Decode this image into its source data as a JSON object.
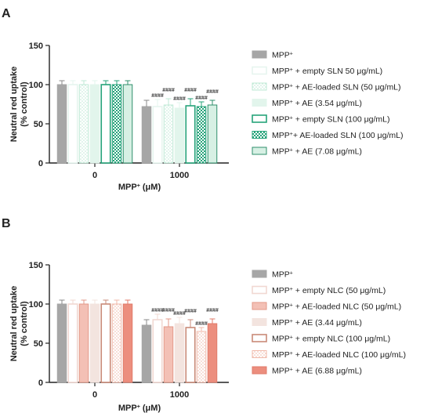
{
  "panels": [
    {
      "letter": "A",
      "ylabel_line1": "Neutral red uptake",
      "ylabel_line2": "(% control)",
      "xlabel_main": "MPP",
      "xlabel_sup": "+",
      "xlabel_units": " (μM)",
      "yticks": [
        "0",
        "50",
        "100",
        "150"
      ],
      "xticks": [
        "0",
        "1000"
      ],
      "legend": [
        {
          "pre": "MPP",
          "sup": "+",
          "post": ""
        },
        {
          "pre": "MPP",
          "sup": "+",
          "post": " + empty SLN 50 μg/mL)"
        },
        {
          "pre": "MPP",
          "sup": "+",
          "post": " + AE-loaded SLN (50 μg/mL)"
        },
        {
          "pre": "MPP",
          "sup": "+",
          "post": " + AE (3.54 μg/mL)"
        },
        {
          "pre": "MPP",
          "sup": "+",
          "post": " + empty SLN (100 μg/mL)"
        },
        {
          "pre": "MPP",
          "sup": "+",
          "post": "+ AE-loaded SLN (100 μg/mL)"
        },
        {
          "pre": "MPP",
          "sup": "+",
          "post": " + AE (7.08 μg/mL)"
        }
      ],
      "sig_labels": [
        "####",
        "####",
        "####",
        "####",
        "####",
        "####"
      ]
    },
    {
      "letter": "B",
      "ylabel_line1": "Neutral red uptake",
      "ylabel_line2": "(% control)",
      "xlabel_main": "MPP",
      "xlabel_sup": "+",
      "xlabel_units": " (μM)",
      "yticks": [
        "0",
        "50",
        "100",
        "150"
      ],
      "xticks": [
        "0",
        "1000"
      ],
      "legend": [
        {
          "pre": "MPP",
          "sup": "+",
          "post": ""
        },
        {
          "pre": "MPP",
          "sup": "+",
          "post": " + empty NLC (50 μg/mL)"
        },
        {
          "pre": "MPP",
          "sup": "+",
          "post": " + AE-loaded NLC (50 μg/mL)"
        },
        {
          "pre": "MPP",
          "sup": "+",
          "post": " + AE (3.44 μg/mL)"
        },
        {
          "pre": "MPP",
          "sup": "+",
          "post": " + empty NLC (100 μg/mL)"
        },
        {
          "pre": "MPP",
          "sup": "+",
          "post": " + AE-loaded NLC (100 μg/mL)"
        },
        {
          "pre": "MPP",
          "sup": "+",
          "post": " + AE (6.88 μg/mL)"
        }
      ],
      "sig_labels": [
        "####",
        "####",
        "####",
        "####",
        "####",
        "####"
      ]
    }
  ],
  "chart_data": [
    {
      "type": "bar",
      "title": "A",
      "categories": [
        "0",
        "1000"
      ],
      "xlabel": "MPP+ (μM)",
      "ylabel": "Neutral red uptake (% control)",
      "ylim": [
        0,
        150
      ],
      "yticks": [
        0,
        50,
        100,
        150
      ],
      "grid": false,
      "legend_position": "right",
      "series": [
        {
          "name": "MPP+",
          "values": [
            100,
            72
          ],
          "errors": [
            5,
            8
          ],
          "fill": "#a6a6a6",
          "stroke": "#a6a6a6",
          "pattern": "solid"
        },
        {
          "name": "MPP+ + empty SLN 50 μg/mL)",
          "values": [
            100,
            72
          ],
          "errors": [
            5,
            9
          ],
          "fill": "#ffffff",
          "stroke": "#e6f5ef",
          "pattern": "open"
        },
        {
          "name": "MPP+ + AE-loaded SLN (50 μg/mL)",
          "values": [
            100,
            74
          ],
          "errors": [
            5,
            8
          ],
          "fill": "#ffffff",
          "stroke": "#bfe9d6",
          "pattern": "dots"
        },
        {
          "name": "MPP+ + AE (3.54 μg/mL)",
          "values": [
            100,
            70
          ],
          "errors": [
            5,
            7
          ],
          "fill": "#e2f5ec",
          "stroke": "#e2f5ec",
          "pattern": "solid"
        },
        {
          "name": "MPP+ + empty SLN (100 μg/mL)",
          "values": [
            100,
            73
          ],
          "errors": [
            5,
            9
          ],
          "fill": "#ffffff",
          "stroke": "#26a37a",
          "pattern": "open"
        },
        {
          "name": "MPP+ + AE-loaded SLN (100 μg/mL)",
          "values": [
            100,
            72
          ],
          "errors": [
            5,
            6
          ],
          "fill": "#6cc9a6",
          "stroke": "#26a37a",
          "pattern": "checker"
        },
        {
          "name": "MPP+ + AE (7.08 μg/mL)",
          "values": [
            100,
            74
          ],
          "errors": [
            5,
            6
          ],
          "fill": "#d7f0e4",
          "stroke": "#2f8f6b",
          "pattern": "solid"
        }
      ],
      "annotations": [
        "####",
        "####",
        "####",
        "####",
        "####",
        "####"
      ]
    },
    {
      "type": "bar",
      "title": "B",
      "categories": [
        "0",
        "1000"
      ],
      "xlabel": "MPP+ (μM)",
      "ylabel": "Neutral red uptake (% control)",
      "ylim": [
        0,
        150
      ],
      "yticks": [
        0,
        50,
        100,
        150
      ],
      "grid": false,
      "legend_position": "right",
      "series": [
        {
          "name": "MPP+",
          "values": [
            100,
            73
          ],
          "errors": [
            5,
            7
          ],
          "fill": "#a6a6a6",
          "stroke": "#a6a6a6",
          "pattern": "solid"
        },
        {
          "name": "MPP+ + empty NLC (50 μg/mL)",
          "values": [
            100,
            80
          ],
          "errors": [
            5,
            7
          ],
          "fill": "#ffffff",
          "stroke": "#f1d8d2",
          "pattern": "open"
        },
        {
          "name": "MPP+ + AE-loaded NLC (50 μg/mL)",
          "values": [
            100,
            71
          ],
          "errors": [
            5,
            10
          ],
          "fill": "#f3c0b5",
          "stroke": "#e39988",
          "pattern": "solid"
        },
        {
          "name": "MPP+ + AE (3.44 μg/mL)",
          "values": [
            100,
            75
          ],
          "errors": [
            5,
            8
          ],
          "fill": "#f3e4df",
          "stroke": "#f3e4df",
          "pattern": "solid"
        },
        {
          "name": "MPP+ + empty NLC (100 μg/mL)",
          "values": [
            100,
            70
          ],
          "errors": [
            5,
            10
          ],
          "fill": "#ffffff",
          "stroke": "#c98a78",
          "pattern": "open"
        },
        {
          "name": "MPP+ + AE-loaded NLC (100 μg/mL)",
          "values": [
            100,
            65
          ],
          "errors": [
            5,
            5
          ],
          "fill": "#f7d7ce",
          "stroke": "#f0b9aa",
          "pattern": "dots"
        },
        {
          "name": "MPP+ + AE (6.88 μg/mL)",
          "values": [
            100,
            75
          ],
          "errors": [
            5,
            6
          ],
          "fill": "#ec8e7e",
          "stroke": "#e07b6a",
          "pattern": "solid"
        }
      ],
      "annotations": [
        "####",
        "####",
        "####",
        "####",
        "####",
        "####"
      ]
    }
  ]
}
